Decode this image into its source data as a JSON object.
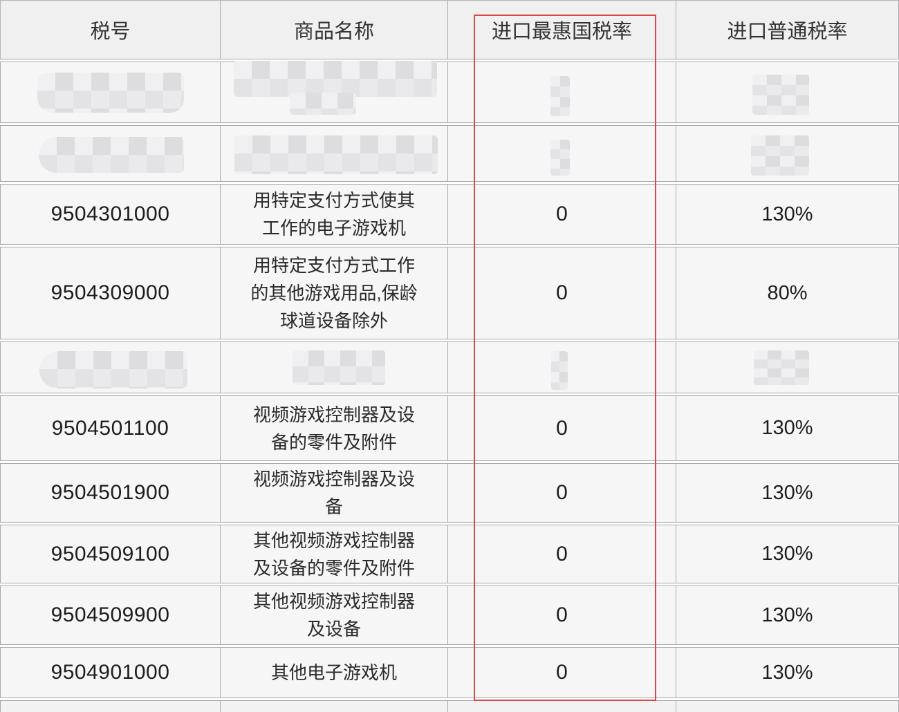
{
  "table": {
    "headers": [
      "税号",
      "商品名称",
      "进口最惠国税率",
      "进口普通税率"
    ],
    "rows": [
      {
        "censored": true
      },
      {
        "censored": true
      },
      {
        "code": "9504301000",
        "name": "用特定支付方式使其\n工作的电子游戏机",
        "mfn": "0",
        "general": "130%"
      },
      {
        "code": "9504309000",
        "name": "用特定支付方式工作\n的其他游戏用品,保龄\n球道设备除外",
        "mfn": "0",
        "general": "80%"
      },
      {
        "censored": true
      },
      {
        "code": "9504501100",
        "name": "视频游戏控制器及设\n备的零件及附件",
        "mfn": "0",
        "general": "130%"
      },
      {
        "code": "9504501900",
        "name": "视频游戏控制器及设\n备",
        "mfn": "0",
        "general": "130%"
      },
      {
        "code": "9504509100",
        "name": "其他视频游戏控制器\n及设备的零件及附件",
        "mfn": "0",
        "general": "130%"
      },
      {
        "code": "9504509900",
        "name": "其他视频游戏控制器\n及设备",
        "mfn": "0",
        "general": "130%"
      },
      {
        "code": "9504901000",
        "name": "其他电子游戏机",
        "mfn": "0",
        "general": "130%"
      }
    ]
  },
  "highlight": {
    "highlighted_column": "进口最惠国税率",
    "accent_color": "#d84a4a"
  }
}
